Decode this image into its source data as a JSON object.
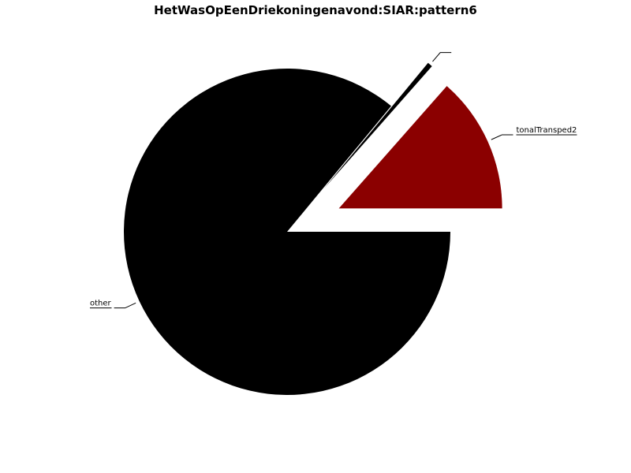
{
  "chart_data": {
    "type": "pie",
    "title": "HetWasOpEenDriekoningenavond:SIAR:pattern6",
    "slices": [
      {
        "label": "other",
        "value": 86,
        "color": "#000000",
        "exploded": false
      },
      {
        "label": "",
        "value": 0.5,
        "color": "#000000",
        "exploded": true
      },
      {
        "label": "tonalTransped2",
        "value": 13.5,
        "color": "#8b0000",
        "exploded": true
      }
    ],
    "start_angle_deg": 0,
    "direction": "clockwise",
    "legend": "none"
  }
}
